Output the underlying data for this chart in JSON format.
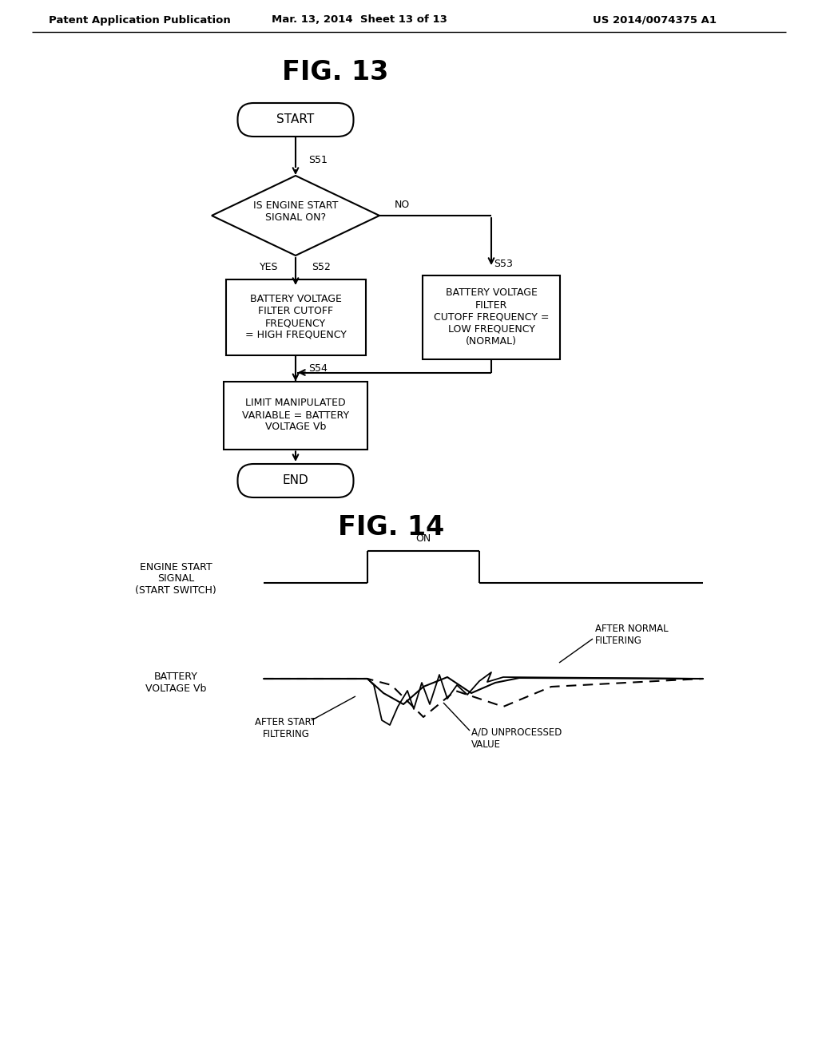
{
  "header_left": "Patent Application Publication",
  "header_mid": "Mar. 13, 2014  Sheet 13 of 13",
  "header_right": "US 2014/0074375 A1",
  "fig13_title": "FIG. 13",
  "fig14_title": "FIG. 14",
  "background_color": "#ffffff",
  "flowchart": {
    "start_text": "START",
    "end_text": "END",
    "diamond_text": "IS ENGINE START\nSIGNAL ON?",
    "s51": "S51",
    "s52": "S52",
    "s53": "S53",
    "s54": "S54",
    "no_text": "NO",
    "yes_text": "YES",
    "box_s52_text": "BATTERY VOLTAGE\nFILTER CUTOFF\nFREQUENCY\n= HIGH FREQUENCY",
    "box_s53_text": "BATTERY VOLTAGE\nFILTER\nCUTOFF FREQUENCY =\nLOW FREQUENCY\n(NORMAL)",
    "box_s54_text": "LIMIT MANIPULATED\nVARIABLE = BATTERY\nVOLTAGE Vb"
  },
  "timechart": {
    "label_engine": "ENGINE START\nSIGNAL\n(START SWITCH)",
    "label_battery": "BATTERY\nVOLTAGE Vb",
    "label_on": "ON",
    "label_after_normal": "AFTER NORMAL\nFILTERING",
    "label_after_start": "AFTER START\nFILTERING",
    "label_ad": "A/D UNPROCESSED\nVALUE"
  }
}
